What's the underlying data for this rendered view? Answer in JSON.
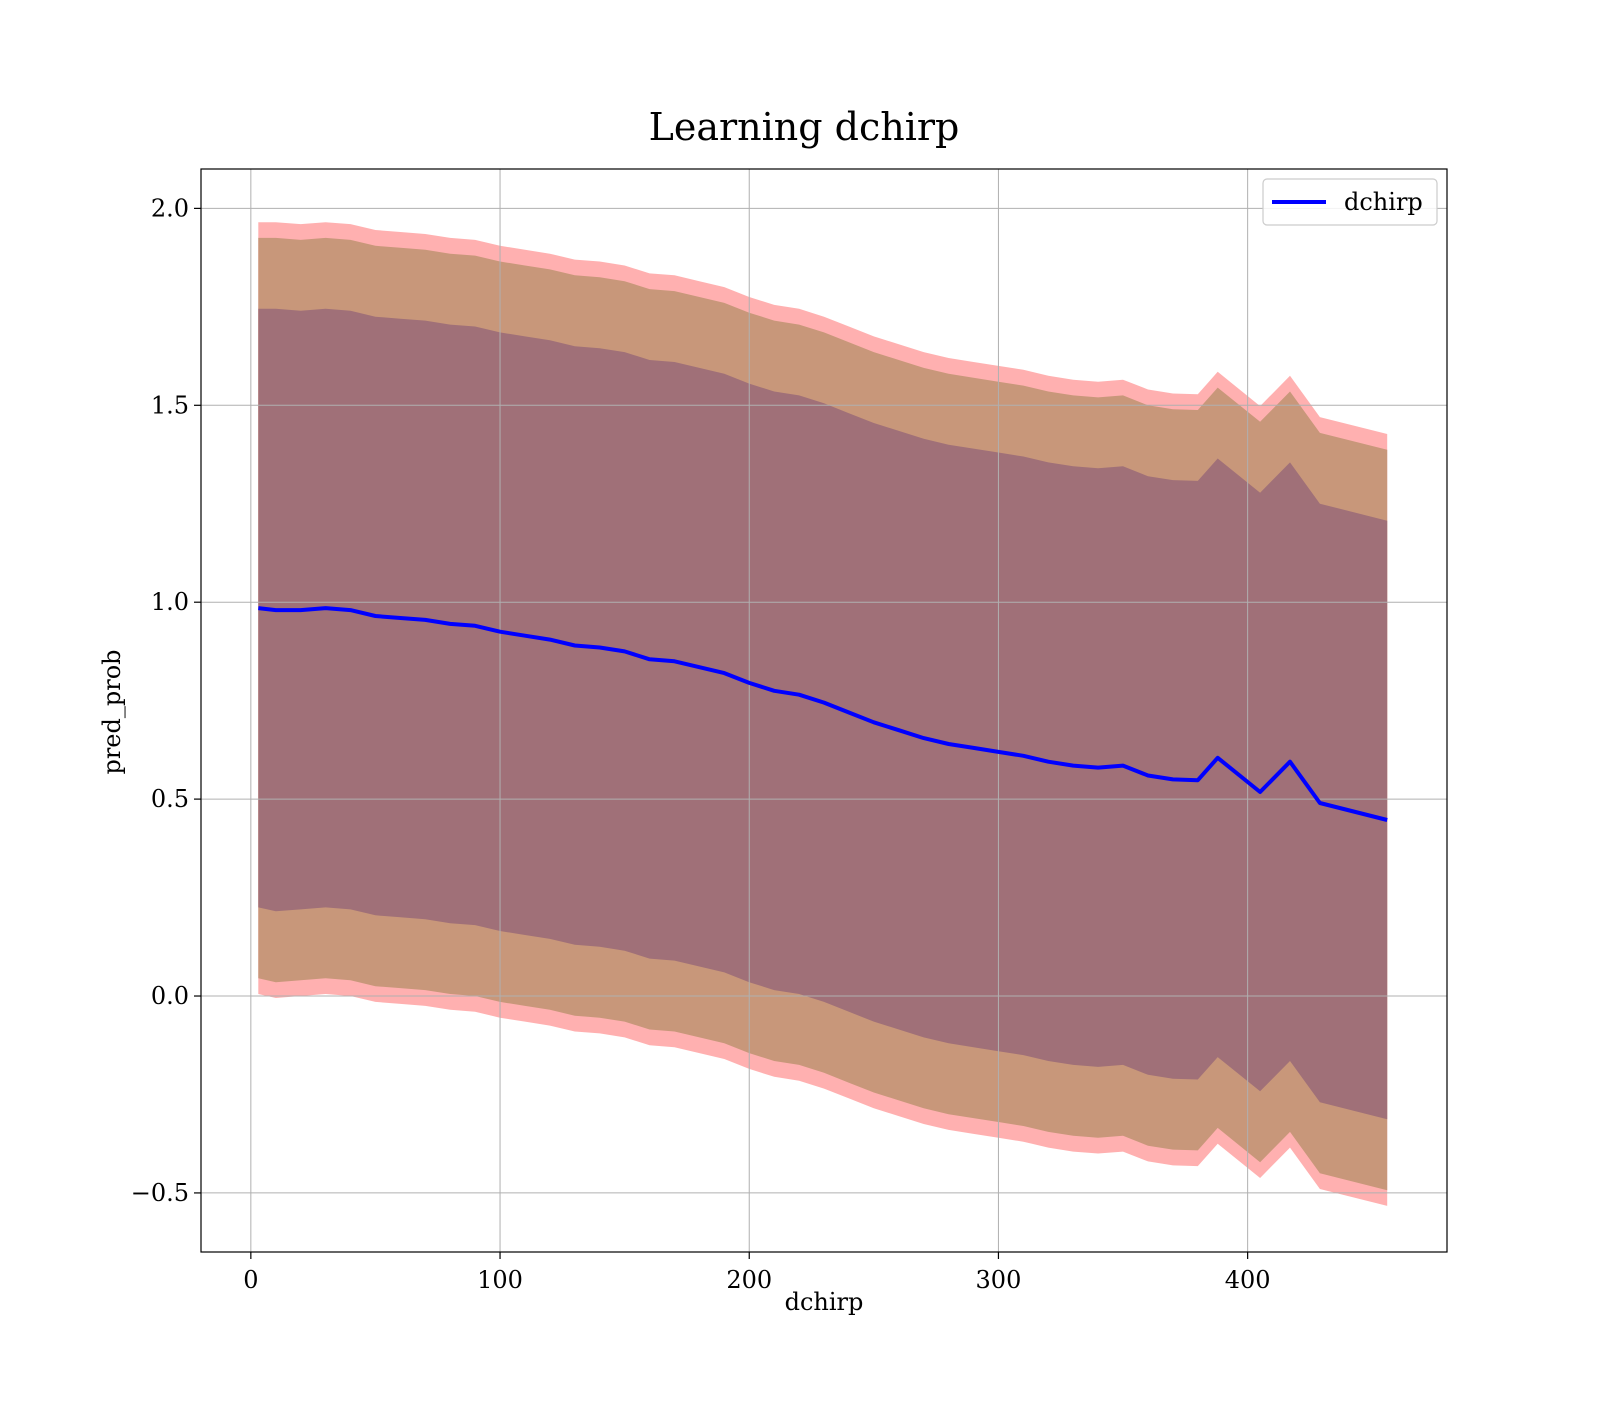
{
  "chart_data": {
    "type": "line",
    "title": "Learning dchirp",
    "xlabel": "dchirp",
    "ylabel": "pred_prob",
    "xlim": [
      -20,
      480
    ],
    "ylim": [
      -0.65,
      2.1
    ],
    "xticks": [
      0,
      100,
      200,
      300,
      400
    ],
    "xtick_labels": [
      "0",
      "100",
      "200",
      "300",
      "400"
    ],
    "yticks": [
      -0.5,
      0.0,
      0.5,
      1.0,
      1.5,
      2.0
    ],
    "ytick_labels": [
      "−0.5",
      "0.0",
      "0.5",
      "1.0",
      "1.5",
      "2.0"
    ],
    "grid": true,
    "legend": {
      "position": "top-right",
      "entries": [
        "dchirp"
      ]
    },
    "series": [
      {
        "name": "dchirp",
        "color": "#0000ff",
        "x": [
          3,
          10,
          20,
          30,
          40,
          50,
          60,
          70,
          80,
          90,
          100,
          110,
          120,
          130,
          140,
          150,
          160,
          170,
          180,
          190,
          200,
          210,
          220,
          230,
          240,
          250,
          260,
          270,
          280,
          290,
          300,
          310,
          320,
          330,
          340,
          350,
          360,
          370,
          380,
          388,
          405,
          417,
          429,
          456
        ],
        "values": [
          0.985,
          0.98,
          0.98,
          0.985,
          0.98,
          0.965,
          0.96,
          0.955,
          0.945,
          0.94,
          0.925,
          0.915,
          0.905,
          0.89,
          0.885,
          0.875,
          0.855,
          0.85,
          0.835,
          0.82,
          0.795,
          0.775,
          0.765,
          0.745,
          0.72,
          0.695,
          0.675,
          0.655,
          0.64,
          0.63,
          0.62,
          0.61,
          0.595,
          0.585,
          0.58,
          0.585,
          0.56,
          0.55,
          0.548,
          0.605,
          0.518,
          0.595,
          0.49,
          0.447
        ],
        "band_inner_upper": [
          1.745,
          1.745,
          1.74,
          1.745,
          1.74,
          1.725,
          1.72,
          1.715,
          1.705,
          1.7,
          1.685,
          1.675,
          1.665,
          1.65,
          1.645,
          1.635,
          1.615,
          1.61,
          1.595,
          1.58,
          1.555,
          1.535,
          1.525,
          1.505,
          1.48,
          1.455,
          1.435,
          1.415,
          1.4,
          1.39,
          1.38,
          1.37,
          1.355,
          1.345,
          1.34,
          1.345,
          1.32,
          1.31,
          1.308,
          1.365,
          1.278,
          1.355,
          1.25,
          1.207
        ],
        "band_inner_lower": [
          0.225,
          0.215,
          0.22,
          0.225,
          0.22,
          0.205,
          0.2,
          0.195,
          0.185,
          0.18,
          0.165,
          0.155,
          0.145,
          0.13,
          0.125,
          0.115,
          0.095,
          0.09,
          0.075,
          0.06,
          0.035,
          0.015,
          0.005,
          -0.015,
          -0.04,
          -0.065,
          -0.085,
          -0.105,
          -0.12,
          -0.13,
          -0.14,
          -0.15,
          -0.165,
          -0.175,
          -0.18,
          -0.175,
          -0.2,
          -0.21,
          -0.212,
          -0.155,
          -0.242,
          -0.165,
          -0.27,
          -0.313
        ],
        "band_mid_upper": [
          1.925,
          1.925,
          1.92,
          1.925,
          1.92,
          1.905,
          1.9,
          1.895,
          1.885,
          1.88,
          1.865,
          1.855,
          1.845,
          1.83,
          1.825,
          1.815,
          1.795,
          1.79,
          1.775,
          1.76,
          1.735,
          1.715,
          1.705,
          1.685,
          1.66,
          1.635,
          1.615,
          1.595,
          1.58,
          1.57,
          1.56,
          1.55,
          1.535,
          1.525,
          1.52,
          1.525,
          1.5,
          1.49,
          1.488,
          1.545,
          1.458,
          1.535,
          1.43,
          1.387
        ],
        "band_mid_lower": [
          0.045,
          0.035,
          0.04,
          0.045,
          0.04,
          0.025,
          0.02,
          0.015,
          0.005,
          0.0,
          -0.015,
          -0.025,
          -0.035,
          -0.05,
          -0.055,
          -0.065,
          -0.085,
          -0.09,
          -0.105,
          -0.12,
          -0.145,
          -0.165,
          -0.175,
          -0.195,
          -0.22,
          -0.245,
          -0.265,
          -0.285,
          -0.3,
          -0.31,
          -0.32,
          -0.33,
          -0.345,
          -0.355,
          -0.36,
          -0.355,
          -0.38,
          -0.39,
          -0.392,
          -0.335,
          -0.422,
          -0.345,
          -0.45,
          -0.493
        ],
        "band_outer_upper": [
          1.965,
          1.965,
          1.96,
          1.965,
          1.96,
          1.945,
          1.94,
          1.935,
          1.925,
          1.92,
          1.905,
          1.895,
          1.885,
          1.87,
          1.865,
          1.855,
          1.835,
          1.83,
          1.815,
          1.8,
          1.775,
          1.755,
          1.745,
          1.725,
          1.7,
          1.675,
          1.655,
          1.635,
          1.62,
          1.61,
          1.6,
          1.59,
          1.575,
          1.565,
          1.56,
          1.565,
          1.54,
          1.53,
          1.528,
          1.585,
          1.498,
          1.575,
          1.47,
          1.427
        ],
        "band_outer_lower": [
          0.005,
          -0.005,
          0.0,
          0.005,
          0.0,
          -0.015,
          -0.02,
          -0.025,
          -0.035,
          -0.04,
          -0.055,
          -0.065,
          -0.075,
          -0.09,
          -0.095,
          -0.105,
          -0.125,
          -0.13,
          -0.145,
          -0.16,
          -0.185,
          -0.205,
          -0.215,
          -0.235,
          -0.26,
          -0.285,
          -0.305,
          -0.325,
          -0.34,
          -0.35,
          -0.36,
          -0.37,
          -0.385,
          -0.395,
          -0.4,
          -0.395,
          -0.42,
          -0.43,
          -0.432,
          -0.375,
          -0.462,
          -0.385,
          -0.49,
          -0.533
        ]
      }
    ],
    "band_colors": {
      "outer": "#ff6f6f",
      "mid": "#c8977a",
      "inner": "#a07078"
    }
  }
}
